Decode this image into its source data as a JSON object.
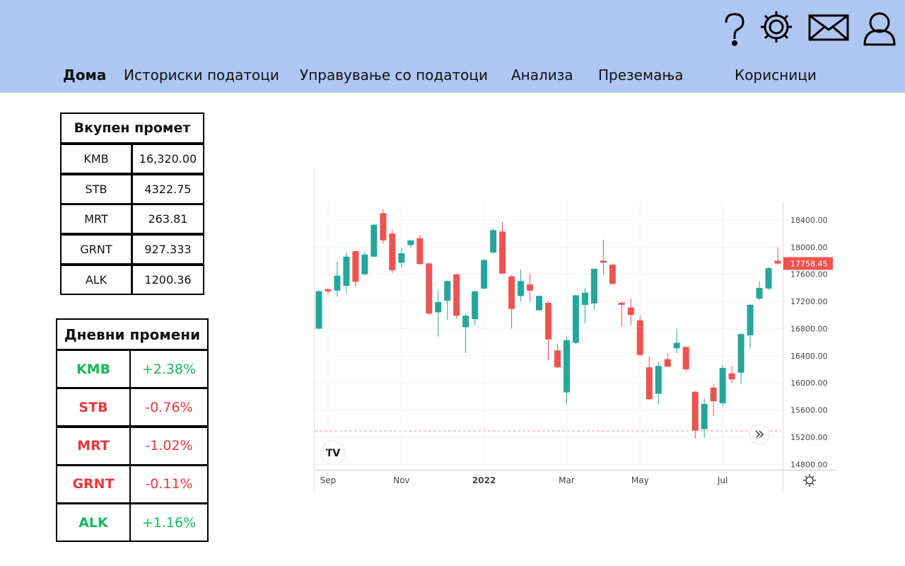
{
  "header": {
    "nav": [
      "Дома",
      "Историски податоци",
      "Управување со податоци",
      "Анализа",
      "Преземања",
      "Корисници"
    ]
  },
  "turnover": {
    "title": "Вкупен промет",
    "rows": [
      [
        "KMB",
        "16,320.00"
      ],
      [
        "STB",
        "4322.75"
      ],
      [
        "MRT",
        "263.81"
      ],
      [
        "GRNT",
        "927.333"
      ],
      [
        "ALK",
        "1200.36"
      ]
    ]
  },
  "daily_changes": {
    "title": "Дневни промени",
    "rows": [
      [
        "KMB",
        "+2.38%"
      ],
      [
        "STB",
        "-0.76%"
      ],
      [
        "MRT",
        "-1.02%"
      ],
      [
        "GRNT",
        "-0.11%"
      ],
      [
        "ALK",
        "+1.16%"
      ]
    ]
  },
  "chart_data": {
    "type": "candlestick",
    "categories": [
      null,
      "Sep",
      null,
      null,
      null,
      null,
      null,
      null,
      null,
      "Nov",
      null,
      null,
      null,
      null,
      null,
      null,
      null,
      null,
      "2022",
      null,
      null,
      null,
      null,
      null,
      null,
      null,
      null,
      "Mar",
      null,
      null,
      null,
      null,
      null,
      null,
      null,
      "May",
      null,
      null,
      null,
      null,
      null,
      null,
      null,
      null,
      "Jul",
      null,
      null,
      null,
      null,
      null,
      null
    ],
    "open": [
      16800,
      17380,
      17360,
      17430,
      17940,
      17600,
      17860,
      18500,
      18200,
      17770,
      18030,
      18130,
      17760,
      17040,
      17210,
      17600,
      16820,
      16940,
      17390,
      17920,
      18230,
      17570,
      17280,
      17450,
      17070,
      17180,
      16480,
      15860,
      16590,
      17150,
      17170,
      17800,
      17740,
      17180,
      17110,
      16920,
      16230,
      15840,
      16350,
      16510,
      16530,
      15870,
      15320,
      15930,
      15700,
      16140,
      16150,
      16700,
      17240,
      17390,
      17800
    ],
    "high": [
      17360,
      17400,
      17790,
      17920,
      17950,
      17930,
      18340,
      18560,
      18260,
      17990,
      18110,
      18180,
      17770,
      17380,
      17510,
      17610,
      17020,
      17360,
      17820,
      18280,
      18370,
      17590,
      17670,
      17610,
      17290,
      17200,
      16580,
      16680,
      17300,
      17400,
      17690,
      18110,
      17760,
      17200,
      17240,
      17000,
      16390,
      16300,
      16430,
      16800,
      16540,
      15880,
      15770,
      15980,
      16260,
      16250,
      16730,
      17160,
      17500,
      17710,
      18000
    ],
    "low": [
      16790,
      17300,
      17270,
      17320,
      17420,
      17580,
      17850,
      18050,
      17620,
      17700,
      17990,
      17740,
      17000,
      16680,
      16930,
      16950,
      16440,
      16850,
      17380,
      17900,
      17600,
      16800,
      17200,
      17200,
      17060,
      16330,
      16220,
      15690,
      16570,
      16880,
      17080,
      17600,
      17440,
      16830,
      16850,
      16400,
      15750,
      15690,
      16230,
      16440,
      16170,
      15180,
      15190,
      15510,
      15660,
      16000,
      15980,
      16500,
      17220,
      17370,
      17740
    ],
    "close": [
      17350,
      17350,
      17580,
      17860,
      17490,
      17890,
      18330,
      18100,
      17660,
      17910,
      18100,
      17750,
      17020,
      17190,
      17500,
      16990,
      16990,
      17350,
      17810,
      18250,
      17610,
      17090,
      17500,
      17360,
      17280,
      16640,
      16230,
      16630,
      17290,
      17330,
      17680,
      17770,
      17460,
      17150,
      17000,
      16410,
      15760,
      16250,
      16240,
      16590,
      16200,
      15300,
      15690,
      15730,
      16220,
      16050,
      16720,
      17150,
      17400,
      17690,
      17758.45
    ],
    "up_color": "#26a69a",
    "down_color": "#ef5350",
    "ylim": [
      14710,
      18670
    ],
    "yticks": [
      {
        "value": 14800,
        "label": "14800.00"
      },
      {
        "value": 15200,
        "label": "15200.00"
      },
      {
        "value": 15600,
        "label": "15600.00"
      },
      {
        "value": 16000,
        "label": "16000.00"
      },
      {
        "value": 16400,
        "label": "16400.00"
      },
      {
        "value": 16800,
        "label": "16800.00"
      },
      {
        "value": 17200,
        "label": "17200.00"
      },
      {
        "value": 17600,
        "label": "17600.00"
      },
      {
        "value": 18000,
        "label": "18000.00"
      },
      {
        "value": 18400,
        "label": "18400.00"
      }
    ],
    "grid": true
  }
}
